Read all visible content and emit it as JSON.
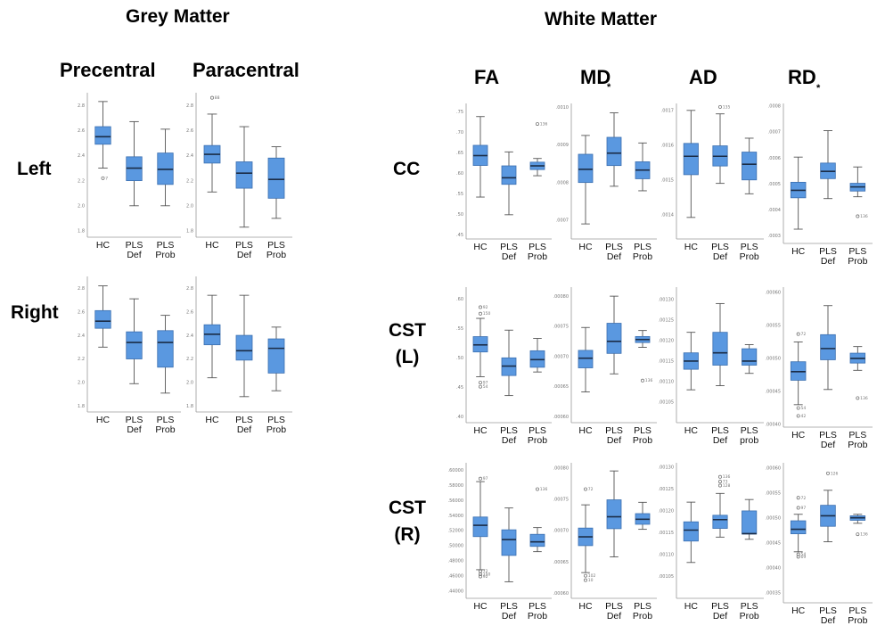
{
  "titles": {
    "grey_matter": "Grey Matter",
    "white_matter": "White Matter",
    "precentral": "Precentral",
    "paracentral": "Paracentral",
    "fa": "FA",
    "md": "MD",
    "ad": "AD",
    "rd": "RD"
  },
  "row_labels": {
    "left": "Left",
    "right": "Right",
    "cc": "CC",
    "cst_l_line1": "CST",
    "cst_l_line2": "(L)",
    "cst_r_line1": "CST",
    "cst_r_line2": "(R)"
  },
  "markers": {
    "md": "*",
    "rd": "*"
  },
  "colors": {
    "box": "#5a98e0",
    "median": "#1b2c46",
    "axis": "#9a9a9a"
  },
  "chart_data": [
    {
      "type": "boxplot",
      "region": "Grey Matter",
      "column": "Precentral",
      "row": "Left",
      "categories": [
        [
          "HC"
        ],
        [
          "PLS",
          "Def"
        ],
        [
          "PLS",
          "Prob"
        ]
      ],
      "ylim": [
        1.75,
        2.9
      ],
      "yticks": [
        "1.8",
        "2.0",
        "2.2",
        "2.4",
        "2.6",
        "2.8"
      ],
      "boxes": [
        {
          "q1": 2.49,
          "median": 2.55,
          "q3": 2.63,
          "low": 2.3,
          "high": 2.83,
          "outliers": [
            {
              "v": 2.22,
              "label": "7"
            }
          ]
        },
        {
          "q1": 2.2,
          "median": 2.3,
          "q3": 2.39,
          "low": 2.0,
          "high": 2.67,
          "outliers": []
        },
        {
          "q1": 2.17,
          "median": 2.29,
          "q3": 2.42,
          "low": 2.0,
          "high": 2.61,
          "outliers": []
        }
      ]
    },
    {
      "type": "boxplot",
      "region": "Grey Matter",
      "column": "Paracentral",
      "row": "Left",
      "categories": [
        [
          "HC"
        ],
        [
          "PLS",
          "Def"
        ],
        [
          "PLS",
          "Prob"
        ]
      ],
      "ylim": [
        1.75,
        2.9
      ],
      "yticks": [
        "1.8",
        "2.0",
        "2.2",
        "2.4",
        "2.6",
        "2.8"
      ],
      "boxes": [
        {
          "q1": 2.34,
          "median": 2.41,
          "q3": 2.48,
          "low": 2.11,
          "high": 2.73,
          "outliers": [
            {
              "v": 2.86,
              "label": "88"
            }
          ]
        },
        {
          "q1": 2.14,
          "median": 2.26,
          "q3": 2.35,
          "low": 1.83,
          "high": 2.63,
          "outliers": []
        },
        {
          "q1": 2.06,
          "median": 2.21,
          "q3": 2.38,
          "low": 1.9,
          "high": 2.47,
          "outliers": []
        }
      ]
    },
    {
      "type": "boxplot",
      "region": "Grey Matter",
      "column": "Precentral",
      "row": "Right",
      "categories": [
        [
          "HC"
        ],
        [
          "PLS",
          "Def"
        ],
        [
          "PLS",
          "Prob"
        ]
      ],
      "ylim": [
        1.75,
        2.9
      ],
      "yticks": [
        "1.8",
        "2.0",
        "2.2",
        "2.4",
        "2.6",
        "2.8"
      ],
      "boxes": [
        {
          "q1": 2.46,
          "median": 2.52,
          "q3": 2.61,
          "low": 2.3,
          "high": 2.82,
          "outliers": []
        },
        {
          "q1": 2.2,
          "median": 2.34,
          "q3": 2.43,
          "low": 1.99,
          "high": 2.71,
          "outliers": []
        },
        {
          "q1": 2.13,
          "median": 2.34,
          "q3": 2.44,
          "low": 1.91,
          "high": 2.57,
          "outliers": []
        }
      ]
    },
    {
      "type": "boxplot",
      "region": "Grey Matter",
      "column": "Paracentral",
      "row": "Right",
      "categories": [
        [
          "HC"
        ],
        [
          "PLS",
          "Def"
        ],
        [
          "PLS",
          "Prob"
        ]
      ],
      "ylim": [
        1.75,
        2.9
      ],
      "yticks": [
        "1.8",
        "2.0",
        "2.2",
        "2.4",
        "2.6",
        "2.8"
      ],
      "boxes": [
        {
          "q1": 2.32,
          "median": 2.41,
          "q3": 2.49,
          "low": 2.04,
          "high": 2.74,
          "outliers": []
        },
        {
          "q1": 2.19,
          "median": 2.27,
          "q3": 2.4,
          "low": 1.88,
          "high": 2.74,
          "outliers": []
        },
        {
          "q1": 2.08,
          "median": 2.29,
          "q3": 2.37,
          "low": 1.93,
          "high": 2.47,
          "outliers": []
        }
      ]
    },
    {
      "type": "boxplot",
      "region": "White Matter",
      "column": "FA",
      "row": "CC",
      "categories": [
        [
          "HC"
        ],
        [
          "PLS",
          "Def"
        ],
        [
          "PLS",
          "Prob"
        ]
      ],
      "ylim": [
        0.44,
        0.77
      ],
      "yticks": [
        ".45",
        ".50",
        ".55",
        ".60",
        ".65",
        ".70",
        ".75"
      ],
      "boxes": [
        {
          "q1": 0.619,
          "median": 0.643,
          "q3": 0.668,
          "low": 0.542,
          "high": 0.738,
          "outliers": []
        },
        {
          "q1": 0.573,
          "median": 0.589,
          "q3": 0.618,
          "low": 0.499,
          "high": 0.652,
          "outliers": []
        },
        {
          "q1": 0.609,
          "median": 0.618,
          "q3": 0.627,
          "low": 0.594,
          "high": 0.636,
          "outliers": [
            {
              "v": 0.72,
              "label": "136"
            }
          ]
        }
      ]
    },
    {
      "type": "boxplot",
      "region": "White Matter",
      "column": "MD",
      "row": "CC",
      "categories": [
        [
          "HC"
        ],
        [
          "PLS",
          "Def"
        ],
        [
          "PLS",
          "Prob"
        ]
      ],
      "ylim": [
        0.00065,
        0.00101
      ],
      "yticks": [
        ".0007",
        ".0008",
        ".0009",
        ".0010"
      ],
      "boxes": [
        {
          "q1": 0.0008,
          "median": 0.000835,
          "q3": 0.000875,
          "low": 0.00069,
          "high": 0.000925,
          "outliers": []
        },
        {
          "q1": 0.000845,
          "median": 0.000878,
          "q3": 0.00092,
          "low": 0.00079,
          "high": 0.000985,
          "outliers": []
        },
        {
          "q1": 0.00081,
          "median": 0.000833,
          "q3": 0.000855,
          "low": 0.000778,
          "high": 0.000905,
          "outliers": []
        }
      ]
    },
    {
      "type": "boxplot",
      "region": "White Matter",
      "column": "AD",
      "row": "CC",
      "categories": [
        [
          "HC"
        ],
        [
          "PLS",
          "Def"
        ],
        [
          "PLS",
          "Prob"
        ]
      ],
      "ylim": [
        0.00133,
        0.00172
      ],
      "yticks": [
        ".0014",
        ".0015",
        ".0016",
        ".0017"
      ],
      "boxes": [
        {
          "q1": 0.001515,
          "median": 0.001568,
          "q3": 0.001605,
          "low": 0.001392,
          "high": 0.0017,
          "outliers": []
        },
        {
          "q1": 0.00154,
          "median": 0.001568,
          "q3": 0.001598,
          "low": 0.00149,
          "high": 0.00169,
          "outliers": [
            {
              "v": 0.00171,
              "label": "135"
            }
          ]
        },
        {
          "q1": 0.0015,
          "median": 0.001545,
          "q3": 0.00158,
          "low": 0.00146,
          "high": 0.00162,
          "outliers": []
        }
      ]
    },
    {
      "type": "boxplot",
      "region": "White Matter",
      "column": "RD",
      "row": "CC",
      "categories": [
        [
          "HC"
        ],
        [
          "PLS",
          "Def"
        ],
        [
          "PLS",
          "Prob"
        ]
      ],
      "ylim": [
        0.00027,
        0.00081
      ],
      "yticks": [
        ".0003",
        ".0004",
        ".0005",
        ".0006",
        ".0007",
        ".0008"
      ],
      "boxes": [
        {
          "q1": 0.000446,
          "median": 0.000475,
          "q3": 0.000506,
          "low": 0.000325,
          "high": 0.000603,
          "outliers": []
        },
        {
          "q1": 0.00052,
          "median": 0.000548,
          "q3": 0.00058,
          "low": 0.000443,
          "high": 0.000705,
          "outliers": []
        },
        {
          "q1": 0.000472,
          "median": 0.000488,
          "q3": 0.000502,
          "low": 0.00045,
          "high": 0.000565,
          "outliers": [
            {
              "v": 0.000375,
              "label": "136"
            }
          ]
        }
      ]
    },
    {
      "type": "boxplot",
      "region": "White Matter",
      "column": "FA",
      "row": "CST (L)",
      "categories": [
        [
          "HC"
        ],
        [
          "PLS",
          "Def"
        ],
        [
          "PLS",
          "Prob"
        ]
      ],
      "ylim": [
        0.39,
        0.62
      ],
      "yticks": [
        ".40",
        ".45",
        ".50",
        ".55",
        ".60"
      ],
      "boxes": [
        {
          "q1": 0.51,
          "median": 0.522,
          "q3": 0.536,
          "low": 0.468,
          "high": 0.567,
          "outliers": [
            {
              "v": 0.586,
              "label": "92"
            },
            {
              "v": 0.575,
              "label": "150"
            },
            {
              "v": 0.458,
              "label": "97"
            },
            {
              "v": 0.451,
              "label": "54"
            }
          ]
        },
        {
          "q1": 0.47,
          "median": 0.486,
          "q3": 0.5,
          "low": 0.436,
          "high": 0.547,
          "outliers": []
        },
        {
          "q1": 0.484,
          "median": 0.497,
          "q3": 0.512,
          "low": 0.476,
          "high": 0.533,
          "outliers": []
        }
      ]
    },
    {
      "type": "boxplot",
      "region": "White Matter",
      "column": "MD",
      "row": "CST (L)",
      "categories": [
        [
          "HC"
        ],
        [
          "PLS",
          "Def"
        ],
        [
          "PLS",
          "Prob"
        ]
      ],
      "ylim": [
        0.00059,
        0.000815
      ],
      "yticks": [
        ".00060",
        ".00065",
        ".00070",
        ".00075",
        ".00080"
      ],
      "boxes": [
        {
          "q1": 0.000681,
          "median": 0.000697,
          "q3": 0.00071,
          "low": 0.000641,
          "high": 0.000748,
          "outliers": []
        },
        {
          "q1": 0.000705,
          "median": 0.000725,
          "q3": 0.000755,
          "low": 0.000671,
          "high": 0.0008,
          "outliers": []
        },
        {
          "q1": 0.000723,
          "median": 0.000728,
          "q3": 0.000733,
          "low": 0.000715,
          "high": 0.000743,
          "outliers": [
            {
              "v": 0.00066,
              "label": "136"
            }
          ]
        }
      ]
    },
    {
      "type": "boxplot",
      "region": "White Matter",
      "column": "AD",
      "row": "CST (L)",
      "categories": [
        [
          "HC"
        ],
        [
          "PLS",
          "Def"
        ],
        [
          "PLS",
          "prob"
        ]
      ],
      "ylim": [
        0.001,
        0.00133
      ],
      "yticks": [
        ".00105",
        ".00110",
        ".00115",
        ".00120",
        ".00125",
        ".00130"
      ],
      "boxes": [
        {
          "q1": 0.00113,
          "median": 0.00115,
          "q3": 0.00117,
          "low": 0.00108,
          "high": 0.00122,
          "outliers": []
        },
        {
          "q1": 0.00114,
          "median": 0.00117,
          "q3": 0.00122,
          "low": 0.00109,
          "high": 0.00129,
          "outliers": []
        },
        {
          "q1": 0.00114,
          "median": 0.00115,
          "q3": 0.00118,
          "low": 0.00112,
          "high": 0.00119,
          "outliers": []
        }
      ]
    },
    {
      "type": "boxplot",
      "region": "White Matter",
      "column": "RD",
      "row": "CST (L)",
      "categories": [
        [
          "HC"
        ],
        [
          "PLS",
          "Def"
        ],
        [
          "PLS",
          "Prob"
        ]
      ],
      "ylim": [
        0.000396,
        0.000608
      ],
      "yticks": [
        ".00040",
        ".00045",
        ".00050",
        ".00055",
        ".00060"
      ],
      "boxes": [
        {
          "q1": 0.000467,
          "median": 0.00048,
          "q3": 0.000495,
          "low": 0.00043,
          "high": 0.000525,
          "outliers": [
            {
              "v": 0.000537,
              "label": "72"
            },
            {
              "v": 0.000425,
              "label": "54"
            },
            {
              "v": 0.000413,
              "label": "42"
            }
          ]
        },
        {
          "q1": 0.000498,
          "median": 0.000515,
          "q3": 0.000536,
          "low": 0.000453,
          "high": 0.00058,
          "outliers": []
        },
        {
          "q1": 0.000493,
          "median": 0.0005,
          "q3": 0.000508,
          "low": 0.000482,
          "high": 0.000518,
          "outliers": [
            {
              "v": 0.00044,
              "label": "136"
            }
          ]
        }
      ]
    },
    {
      "type": "boxplot",
      "region": "White Matter",
      "column": "FA",
      "row": "CST (R)",
      "categories": [
        [
          "HC"
        ],
        [
          "PLS",
          "Def"
        ],
        [
          "PLS",
          "Prob"
        ]
      ],
      "ylim": [
        0.43,
        0.61
      ],
      "yticks": [
        ".44000",
        ".46000",
        ".48000",
        ".50000",
        ".52000",
        ".54000",
        ".56000",
        ".58000",
        ".60000"
      ],
      "boxes": [
        {
          "q1": 0.512,
          "median": 0.527,
          "q3": 0.538,
          "low": 0.468,
          "high": 0.585,
          "outliers": [
            {
              "v": 0.589,
              "label": "97"
            },
            {
              "v": 0.466,
              "label": "72"
            },
            {
              "v": 0.462,
              "label": "150"
            },
            {
              "v": 0.459,
              "label": "92"
            }
          ]
        },
        {
          "q1": 0.487,
          "median": 0.508,
          "q3": 0.521,
          "low": 0.452,
          "high": 0.55,
          "outliers": []
        },
        {
          "q1": 0.499,
          "median": 0.505,
          "q3": 0.515,
          "low": 0.492,
          "high": 0.524,
          "outliers": [
            {
              "v": 0.575,
              "label": "136"
            }
          ]
        }
      ]
    },
    {
      "type": "boxplot",
      "region": "White Matter",
      "column": "MD",
      "row": "CST (R)",
      "categories": [
        [
          "HC"
        ],
        [
          "PLS",
          "Def"
        ],
        [
          "PLS",
          "Prob"
        ]
      ],
      "ylim": [
        0.000592,
        0.000808
      ],
      "yticks": [
        ".00060",
        ".00065",
        ".00070",
        ".00075",
        ".00080"
      ],
      "boxes": [
        {
          "q1": 0.000676,
          "median": 0.00069,
          "q3": 0.000704,
          "low": 0.000633,
          "high": 0.000741,
          "outliers": [
            {
              "v": 0.000766,
              "label": "72"
            },
            {
              "v": 0.000628,
              "label": "102"
            },
            {
              "v": 0.000621,
              "label": "10"
            }
          ]
        },
        {
          "q1": 0.000703,
          "median": 0.000722,
          "q3": 0.000749,
          "low": 0.000658,
          "high": 0.000795,
          "outliers": []
        },
        {
          "q1": 0.00071,
          "median": 0.000718,
          "q3": 0.000727,
          "low": 0.000702,
          "high": 0.000745,
          "outliers": []
        }
      ]
    },
    {
      "type": "boxplot",
      "region": "White Matter",
      "column": "AD",
      "row": "CST (R)",
      "categories": [
        [
          "HC"
        ],
        [
          "PLS",
          "Def"
        ],
        [
          "PLS",
          "Prob"
        ]
      ],
      "ylim": [
        0.001,
        0.00131
      ],
      "yticks": [
        ".00105",
        ".00110",
        ".00115",
        ".00120",
        ".00125",
        ".00130"
      ],
      "boxes": [
        {
          "q1": 0.001131,
          "median": 0.001156,
          "q3": 0.001175,
          "low": 0.001082,
          "high": 0.00122,
          "outliers": []
        },
        {
          "q1": 0.00116,
          "median": 0.00118,
          "q3": 0.00119,
          "low": 0.00114,
          "high": 0.00124,
          "outliers": [
            {
              "v": 0.001278,
              "label": "136"
            },
            {
              "v": 0.001267,
              "label": "73"
            },
            {
              "v": 0.001258,
              "label": "128"
            }
          ]
        },
        {
          "q1": 0.001147,
          "median": 0.001148,
          "q3": 0.0012,
          "low": 0.001135,
          "high": 0.001226,
          "outliers": []
        }
      ]
    },
    {
      "type": "boxplot",
      "region": "White Matter",
      "column": "RD",
      "row": "CST (R)",
      "categories": [
        [
          "HC"
        ],
        [
          "PLS",
          "Def"
        ],
        [
          "PLS",
          "Prob"
        ]
      ],
      "ylim": [
        0.00033,
        0.00061
      ],
      "yticks": [
        ".00035",
        ".00040",
        ".00045",
        ".00050",
        ".00055",
        ".00060"
      ],
      "boxes": [
        {
          "q1": 0.000468,
          "median": 0.000477,
          "q3": 0.000494,
          "low": 0.000432,
          "high": 0.000507,
          "outliers": [
            {
              "v": 0.00054,
              "label": "72"
            },
            {
              "v": 0.00052,
              "label": "97"
            },
            {
              "v": 0.000427,
              "label": "54"
            },
            {
              "v": 0.000422,
              "label": "69"
            }
          ]
        },
        {
          "q1": 0.000483,
          "median": 0.000504,
          "q3": 0.000525,
          "low": 0.000452,
          "high": 0.000555,
          "outliers": [
            {
              "v": 0.000589,
              "label": "126"
            }
          ]
        },
        {
          "q1": 0.000495,
          "median": 0.0005,
          "q3": 0.000504,
          "low": 0.000489,
          "high": 0.000507,
          "outliers": [
            {
              "v": 0.000467,
              "label": "136"
            }
          ]
        }
      ]
    }
  ]
}
